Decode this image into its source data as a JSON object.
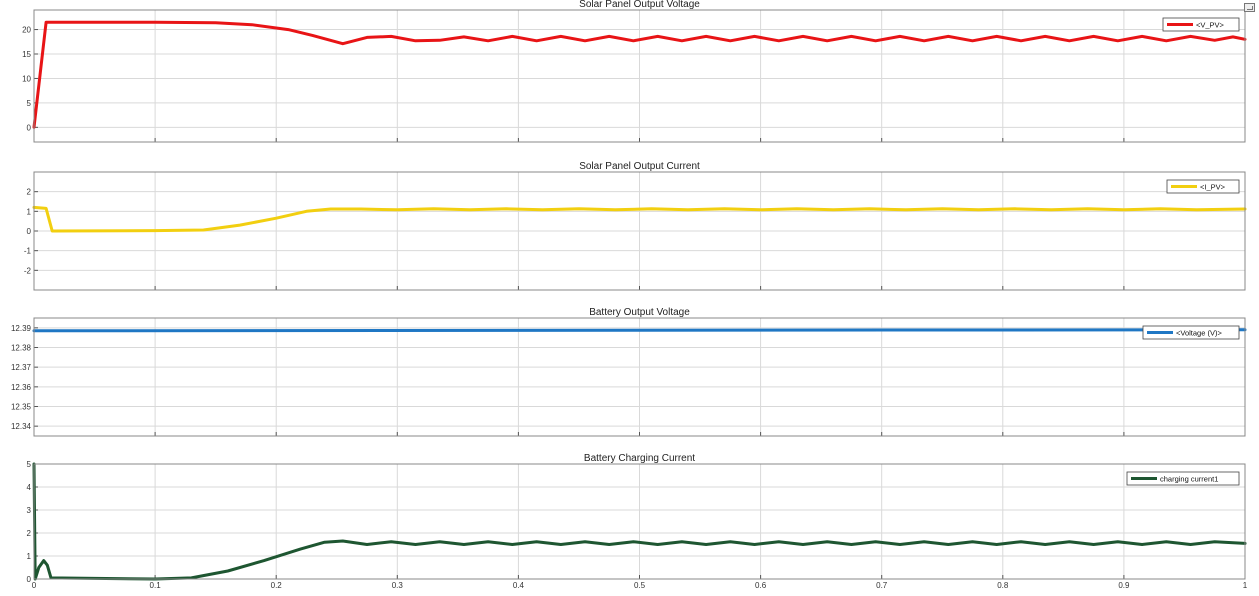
{
  "chart_data": [
    {
      "type": "line",
      "title": "Solar Panel Output Voltage",
      "xlim": [
        0,
        1
      ],
      "ylim": [
        -3,
        24
      ],
      "y_ticks": [
        0,
        5,
        10,
        15,
        20
      ],
      "x_ticks": [],
      "grid": true,
      "legend_position": "top-right",
      "series": [
        {
          "name": "<V_PV>",
          "color": "#e81416",
          "points": [
            [
              0,
              0
            ],
            [
              0.01,
              21.5
            ],
            [
              0.1,
              21.5
            ],
            [
              0.15,
              21.4
            ],
            [
              0.18,
              21.0
            ],
            [
              0.21,
              20.0
            ],
            [
              0.23,
              18.8
            ],
            [
              0.255,
              17.1
            ],
            [
              0.275,
              18.4
            ],
            [
              0.295,
              18.6
            ],
            [
              0.315,
              17.7
            ],
            [
              0.335,
              17.8
            ],
            [
              0.355,
              18.5
            ],
            [
              0.375,
              17.7
            ],
            [
              0.395,
              18.6
            ],
            [
              0.415,
              17.7
            ],
            [
              0.435,
              18.6
            ],
            [
              0.455,
              17.7
            ],
            [
              0.475,
              18.6
            ],
            [
              0.495,
              17.7
            ],
            [
              0.515,
              18.6
            ],
            [
              0.535,
              17.7
            ],
            [
              0.555,
              18.6
            ],
            [
              0.575,
              17.7
            ],
            [
              0.595,
              18.6
            ],
            [
              0.615,
              17.7
            ],
            [
              0.635,
              18.6
            ],
            [
              0.655,
              17.7
            ],
            [
              0.675,
              18.6
            ],
            [
              0.695,
              17.7
            ],
            [
              0.715,
              18.6
            ],
            [
              0.735,
              17.7
            ],
            [
              0.755,
              18.6
            ],
            [
              0.775,
              17.7
            ],
            [
              0.795,
              18.6
            ],
            [
              0.815,
              17.7
            ],
            [
              0.835,
              18.6
            ],
            [
              0.855,
              17.7
            ],
            [
              0.875,
              18.6
            ],
            [
              0.895,
              17.7
            ],
            [
              0.915,
              18.6
            ],
            [
              0.935,
              17.7
            ],
            [
              0.955,
              18.6
            ],
            [
              0.975,
              17.8
            ],
            [
              0.99,
              18.5
            ],
            [
              1.0,
              18.0
            ]
          ]
        }
      ]
    },
    {
      "type": "line",
      "title": "Solar Panel Output Current",
      "xlim": [
        0,
        1
      ],
      "ylim": [
        -3,
        3
      ],
      "y_ticks": [
        -2,
        -1,
        0,
        1,
        2
      ],
      "x_ticks": [],
      "grid": true,
      "legend_position": "top-right",
      "series": [
        {
          "name": "<I_PV>",
          "color": "#f2cf10",
          "points": [
            [
              0,
              1.2
            ],
            [
              0.01,
              1.15
            ],
            [
              0.015,
              0.0
            ],
            [
              0.1,
              0.02
            ],
            [
              0.14,
              0.05
            ],
            [
              0.17,
              0.3
            ],
            [
              0.2,
              0.65
            ],
            [
              0.225,
              1.0
            ],
            [
              0.245,
              1.12
            ],
            [
              0.27,
              1.12
            ],
            [
              0.3,
              1.08
            ],
            [
              0.33,
              1.13
            ],
            [
              0.36,
              1.08
            ],
            [
              0.39,
              1.13
            ],
            [
              0.42,
              1.08
            ],
            [
              0.45,
              1.13
            ],
            [
              0.48,
              1.08
            ],
            [
              0.51,
              1.13
            ],
            [
              0.54,
              1.08
            ],
            [
              0.57,
              1.13
            ],
            [
              0.6,
              1.08
            ],
            [
              0.63,
              1.13
            ],
            [
              0.66,
              1.08
            ],
            [
              0.69,
              1.13
            ],
            [
              0.72,
              1.08
            ],
            [
              0.75,
              1.13
            ],
            [
              0.78,
              1.08
            ],
            [
              0.81,
              1.13
            ],
            [
              0.84,
              1.08
            ],
            [
              0.87,
              1.13
            ],
            [
              0.9,
              1.08
            ],
            [
              0.93,
              1.13
            ],
            [
              0.96,
              1.08
            ],
            [
              1.0,
              1.12
            ]
          ]
        }
      ]
    },
    {
      "type": "line",
      "title": "Battery Output Voltage",
      "xlim": [
        0,
        1
      ],
      "ylim": [
        12.335,
        12.395
      ],
      "y_ticks": [
        12.34,
        12.35,
        12.36,
        12.37,
        12.38,
        12.39
      ],
      "x_ticks": [],
      "grid": true,
      "legend_position": "top-right",
      "series": [
        {
          "name": "<Voltage (V)>",
          "color": "#1f77c4",
          "points": [
            [
              0,
              12.3885
            ],
            [
              0.5,
              12.3888
            ],
            [
              1.0,
              12.389
            ]
          ]
        }
      ]
    },
    {
      "type": "line",
      "title": "Battery Charging Current",
      "xlim": [
        0,
        1
      ],
      "ylim": [
        0,
        5
      ],
      "y_ticks": [
        0,
        1,
        2,
        3,
        4,
        5
      ],
      "x_ticks": [
        0,
        0.1,
        0.2,
        0.3,
        0.4,
        0.5,
        0.6,
        0.7,
        0.8,
        0.9,
        1
      ],
      "grid": true,
      "legend_position": "top-right",
      "series": [
        {
          "name": "charging current1",
          "color": "#1e5631",
          "points": [
            [
              0,
              5.0
            ],
            [
              0.001,
              0.0
            ],
            [
              0.004,
              0.5
            ],
            [
              0.008,
              0.8
            ],
            [
              0.011,
              0.6
            ],
            [
              0.014,
              0.05
            ],
            [
              0.1,
              0.0
            ],
            [
              0.13,
              0.05
            ],
            [
              0.16,
              0.35
            ],
            [
              0.19,
              0.8
            ],
            [
              0.22,
              1.3
            ],
            [
              0.24,
              1.6
            ],
            [
              0.255,
              1.65
            ],
            [
              0.275,
              1.5
            ],
            [
              0.295,
              1.62
            ],
            [
              0.315,
              1.5
            ],
            [
              0.335,
              1.62
            ],
            [
              0.355,
              1.5
            ],
            [
              0.375,
              1.62
            ],
            [
              0.395,
              1.5
            ],
            [
              0.415,
              1.62
            ],
            [
              0.435,
              1.5
            ],
            [
              0.455,
              1.62
            ],
            [
              0.475,
              1.5
            ],
            [
              0.495,
              1.62
            ],
            [
              0.515,
              1.5
            ],
            [
              0.535,
              1.62
            ],
            [
              0.555,
              1.5
            ],
            [
              0.575,
              1.62
            ],
            [
              0.595,
              1.5
            ],
            [
              0.615,
              1.62
            ],
            [
              0.635,
              1.5
            ],
            [
              0.655,
              1.62
            ],
            [
              0.675,
              1.5
            ],
            [
              0.695,
              1.62
            ],
            [
              0.715,
              1.5
            ],
            [
              0.735,
              1.62
            ],
            [
              0.755,
              1.5
            ],
            [
              0.775,
              1.62
            ],
            [
              0.795,
              1.5
            ],
            [
              0.815,
              1.62
            ],
            [
              0.835,
              1.5
            ],
            [
              0.855,
              1.62
            ],
            [
              0.875,
              1.5
            ],
            [
              0.895,
              1.62
            ],
            [
              0.915,
              1.5
            ],
            [
              0.935,
              1.62
            ],
            [
              0.955,
              1.5
            ],
            [
              0.975,
              1.62
            ],
            [
              1.0,
              1.55
            ]
          ]
        }
      ]
    }
  ]
}
